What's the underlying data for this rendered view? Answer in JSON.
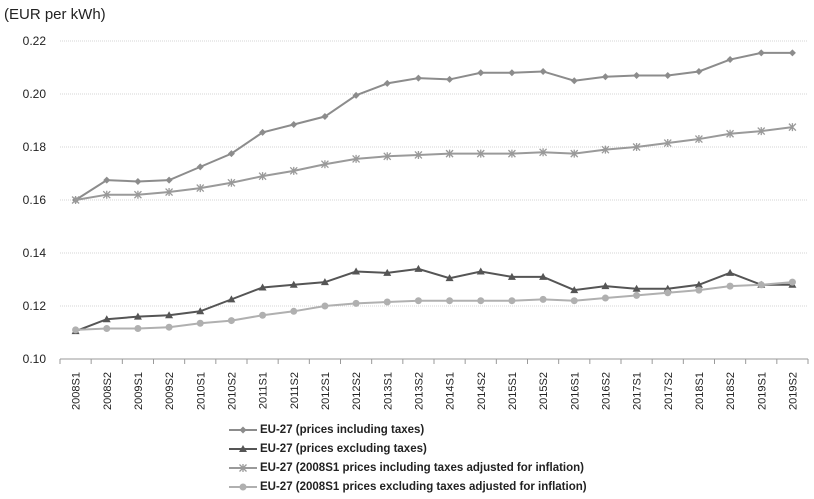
{
  "chart_data": {
    "type": "line",
    "ylabel": "(EUR per kWh)",
    "ylim": [
      0.1,
      0.22
    ],
    "yticks": [
      "0.10",
      "0.12",
      "0.14",
      "0.16",
      "0.18",
      "0.20",
      "0.22"
    ],
    "grid": true,
    "legend_position": "bottom",
    "x": [
      "2008S1",
      "2008S2",
      "2009S1",
      "2009S2",
      "2010S1",
      "2010S2",
      "2011S1",
      "2011S2",
      "2012S1",
      "2012S2",
      "2013S1",
      "2013S2",
      "2014S1",
      "2014S2",
      "2015S1",
      "2015S2",
      "2016S1",
      "2016S2",
      "2017S1",
      "2017S2",
      "2018S1",
      "2018S2",
      "2019S1",
      "2019S2"
    ],
    "series": [
      {
        "name": "EU-27 (prices including taxes)",
        "marker": "diamond",
        "color": "#8c8c8c",
        "values": [
          0.16,
          0.1675,
          0.167,
          0.1675,
          0.1725,
          0.1775,
          0.1855,
          0.1885,
          0.1915,
          0.1995,
          0.204,
          0.206,
          0.2055,
          0.208,
          0.208,
          0.2085,
          0.205,
          0.2065,
          0.207,
          0.207,
          0.2085,
          0.213,
          0.2155,
          0.2155
        ]
      },
      {
        "name": "EU-27 (prices excluding taxes)",
        "marker": "triangle",
        "color": "#555555",
        "values": [
          0.1105,
          0.115,
          0.116,
          0.1165,
          0.118,
          0.1225,
          0.127,
          0.128,
          0.129,
          0.133,
          0.1325,
          0.134,
          0.1305,
          0.133,
          0.131,
          0.131,
          0.126,
          0.1275,
          0.1265,
          0.1265,
          0.128,
          0.1325,
          0.128,
          0.128
        ]
      },
      {
        "name": "EU-27 (2008S1 prices including taxes adjusted for inflation)",
        "marker": "star",
        "color": "#9a9a9a",
        "values": [
          0.16,
          0.162,
          0.162,
          0.163,
          0.1645,
          0.1665,
          0.169,
          0.171,
          0.1735,
          0.1755,
          0.1765,
          0.177,
          0.1775,
          0.1775,
          0.1775,
          0.178,
          0.1775,
          0.179,
          0.18,
          0.1815,
          0.183,
          0.185,
          0.186,
          0.1875
        ]
      },
      {
        "name": "EU-27 (2008S1 prices excluding taxes adjusted for inflation)",
        "marker": "circle",
        "color": "#b0b0b0",
        "values": [
          0.111,
          0.1115,
          0.1115,
          0.112,
          0.1135,
          0.1145,
          0.1165,
          0.118,
          0.12,
          0.121,
          0.1215,
          0.122,
          0.122,
          0.122,
          0.122,
          0.1225,
          0.122,
          0.123,
          0.124,
          0.125,
          0.126,
          0.1275,
          0.128,
          0.129
        ]
      }
    ]
  }
}
